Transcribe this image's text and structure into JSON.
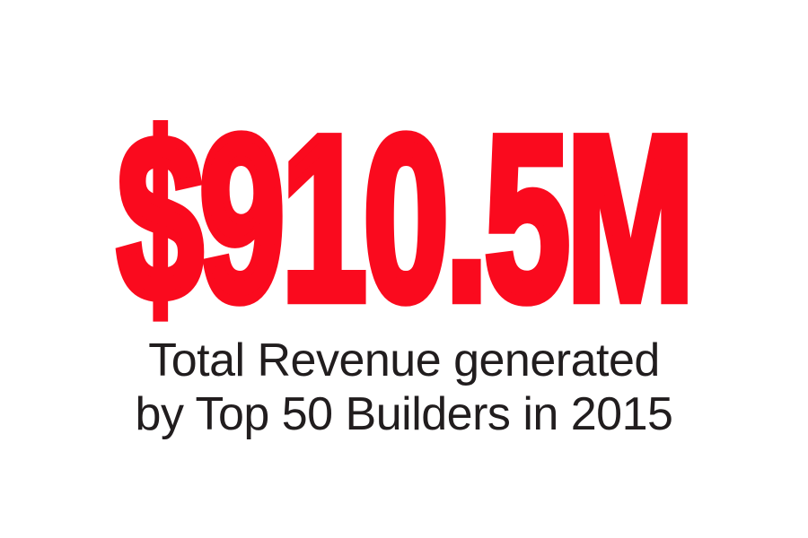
{
  "page": {
    "background_color": "#ffffff"
  },
  "stat": {
    "value": "$910.5M",
    "value_color": "#fa0a1e",
    "description_line1": "Total Revenue generated",
    "description_line2": "by Top 50 Builders in 2015",
    "description_color": "#211d1e"
  },
  "chart_data": {
    "type": "table",
    "title": "Total Revenue generated by Top 50 Builders in 2015",
    "categories": [
      "Total Revenue generated by Top 50 Builders in 2015"
    ],
    "values": [
      910.5
    ],
    "units": "USD millions",
    "display_value": "$910.5M",
    "accent_color": "#fa0a1e"
  }
}
